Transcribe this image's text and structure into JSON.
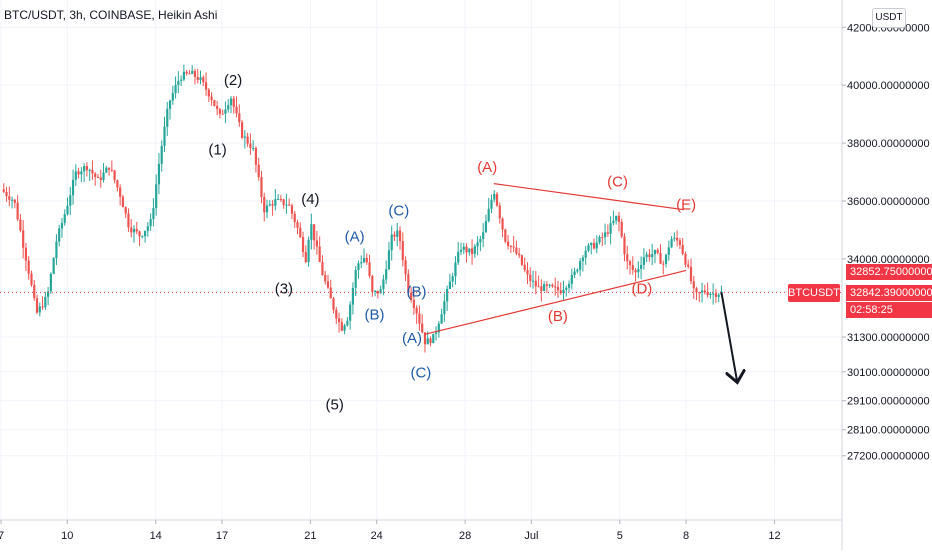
{
  "header": {
    "symbol_title": "BTC/USDT, 3h, COINBASE, Heikin Ashi",
    "currency_badge": "USDT"
  },
  "colors": {
    "up": "#26a69a",
    "down": "#ef5350",
    "wave_black": "#131722",
    "wave_blue": "#1f5ba8",
    "wave_red": "#e53935",
    "price_line": "#f23645",
    "grid": "#f0f3fa",
    "axis_text": "#131722"
  },
  "price_panel": {
    "symbol_tag": "BTCUSDT",
    "ask": "32852.75000000",
    "last": "32842.39000000",
    "countdown": "02:58:25"
  },
  "chart_data": {
    "type": "candlestick",
    "style": "Heikin Ashi",
    "interval": "3h",
    "exchange": "COINBASE",
    "y_ticks": [
      {
        "value": 42000,
        "label": "42000.00000000"
      },
      {
        "value": 40000,
        "label": "40000.00000000"
      },
      {
        "value": 38000,
        "label": "38000.00000000"
      },
      {
        "value": 36000,
        "label": "36000.00000000"
      },
      {
        "value": 34000,
        "label": "34000.00000000"
      },
      {
        "value": 31300,
        "label": "31300.00000000"
      },
      {
        "value": 30100,
        "label": "30100.00000000"
      },
      {
        "value": 29100,
        "label": "29100.00000000"
      },
      {
        "value": 28100,
        "label": "28100.00000000"
      },
      {
        "value": 27200,
        "label": "27200.00000000"
      }
    ],
    "x_ticks": [
      {
        "day": 7,
        "label": "7"
      },
      {
        "day": 10,
        "label": "10"
      },
      {
        "day": 14,
        "label": "14"
      },
      {
        "day": 17,
        "label": "17"
      },
      {
        "day": 21,
        "label": "21"
      },
      {
        "day": 24,
        "label": "24"
      },
      {
        "day": 28,
        "label": "28"
      },
      {
        "day": 31,
        "label": "Jul"
      },
      {
        "day": 35,
        "label": "5"
      },
      {
        "day": 38,
        "label": "8"
      },
      {
        "day": 42,
        "label": "12"
      }
    ],
    "anchors": [
      {
        "day": 7.0,
        "price": 36400
      },
      {
        "day": 7.6,
        "price": 36000
      },
      {
        "day": 8.3,
        "price": 33400
      },
      {
        "day": 8.6,
        "price": 32100
      },
      {
        "day": 9.1,
        "price": 32700
      },
      {
        "day": 9.5,
        "price": 34600
      },
      {
        "day": 9.9,
        "price": 35600
      },
      {
        "day": 10.4,
        "price": 37000
      },
      {
        "day": 10.9,
        "price": 37200
      },
      {
        "day": 11.4,
        "price": 36700
      },
      {
        "day": 11.9,
        "price": 37200
      },
      {
        "day": 12.4,
        "price": 36200
      },
      {
        "day": 12.8,
        "price": 35100
      },
      {
        "day": 13.3,
        "price": 34800
      },
      {
        "day": 13.8,
        "price": 35300
      },
      {
        "day": 14.2,
        "price": 37600
      },
      {
        "day": 14.6,
        "price": 39400
      },
      {
        "day": 15.1,
        "price": 40300
      },
      {
        "day": 15.6,
        "price": 40400
      },
      {
        "day": 16.0,
        "price": 40200
      },
      {
        "day": 16.5,
        "price": 39600
      },
      {
        "day": 16.9,
        "price": 38900
      },
      {
        "day": 17.4,
        "price": 39600
      },
      {
        "day": 17.9,
        "price": 38300
      },
      {
        "day": 18.4,
        "price": 37800
      },
      {
        "day": 18.9,
        "price": 35700
      },
      {
        "day": 19.4,
        "price": 36000
      },
      {
        "day": 20.0,
        "price": 35900
      },
      {
        "day": 20.4,
        "price": 35100
      },
      {
        "day": 20.8,
        "price": 34000
      },
      {
        "day": 21.0,
        "price": 35300
      },
      {
        "day": 21.5,
        "price": 33600
      },
      {
        "day": 22.0,
        "price": 32400
      },
      {
        "day": 22.4,
        "price": 31600
      },
      {
        "day": 22.7,
        "price": 32000
      },
      {
        "day": 23.1,
        "price": 33800
      },
      {
        "day": 23.5,
        "price": 34100
      },
      {
        "day": 23.8,
        "price": 32800
      },
      {
        "day": 24.2,
        "price": 32900
      },
      {
        "day": 24.7,
        "price": 34800
      },
      {
        "day": 25.0,
        "price": 34900
      },
      {
        "day": 25.4,
        "price": 33000
      },
      {
        "day": 25.8,
        "price": 32200
      },
      {
        "day": 26.2,
        "price": 31100
      },
      {
        "day": 26.6,
        "price": 31300
      },
      {
        "day": 26.9,
        "price": 32100
      },
      {
        "day": 27.4,
        "price": 33400
      },
      {
        "day": 27.8,
        "price": 34400
      },
      {
        "day": 28.3,
        "price": 34200
      },
      {
        "day": 28.8,
        "price": 34800
      },
      {
        "day": 29.3,
        "price": 36400
      },
      {
        "day": 29.8,
        "price": 34700
      },
      {
        "day": 30.4,
        "price": 34100
      },
      {
        "day": 30.8,
        "price": 33400
      },
      {
        "day": 31.3,
        "price": 33000
      },
      {
        "day": 31.8,
        "price": 33000
      },
      {
        "day": 32.3,
        "price": 32900
      },
      {
        "day": 32.9,
        "price": 33400
      },
      {
        "day": 33.4,
        "price": 34300
      },
      {
        "day": 33.9,
        "price": 34500
      },
      {
        "day": 34.4,
        "price": 34900
      },
      {
        "day": 34.9,
        "price": 35500
      },
      {
        "day": 35.3,
        "price": 33900
      },
      {
        "day": 35.7,
        "price": 33500
      },
      {
        "day": 36.1,
        "price": 34100
      },
      {
        "day": 36.6,
        "price": 34200
      },
      {
        "day": 37.0,
        "price": 33800
      },
      {
        "day": 37.3,
        "price": 34700
      },
      {
        "day": 37.7,
        "price": 34600
      },
      {
        "day": 38.1,
        "price": 33600
      },
      {
        "day": 38.4,
        "price": 32700
      },
      {
        "day": 38.8,
        "price": 32900
      },
      {
        "day": 39.2,
        "price": 32800
      },
      {
        "day": 39.6,
        "price": 32840
      }
    ],
    "lines": [
      {
        "color_key": "wave_red",
        "from": {
          "day": 29.3,
          "price": 36600
        },
        "to": {
          "day": 37.9,
          "price": 35700
        }
      },
      {
        "color_key": "wave_red",
        "from": {
          "day": 26.2,
          "price": 31400
        },
        "to": {
          "day": 38.0,
          "price": 33600
        }
      },
      {
        "color_key": "wave_black",
        "from": {
          "day": 39.6,
          "price": 32840
        },
        "to": {
          "day": 40.3,
          "price": 29800
        },
        "arrow": true
      }
    ],
    "wave_labels": [
      {
        "text": "(1)",
        "day": 16.8,
        "price": 37600,
        "color_key": "wave_black"
      },
      {
        "text": "(2)",
        "day": 17.5,
        "price": 40000,
        "color_key": "wave_black"
      },
      {
        "text": "(3)",
        "day": 19.8,
        "price": 32800,
        "color_key": "wave_black"
      },
      {
        "text": "(4)",
        "day": 21.0,
        "price": 35900,
        "color_key": "wave_black"
      },
      {
        "text": "(5)",
        "day": 22.1,
        "price": 28800,
        "color_key": "wave_black"
      },
      {
        "text": "(A)",
        "day": 23.0,
        "price": 34600,
        "color_key": "wave_blue"
      },
      {
        "text": "(B)",
        "day": 23.9,
        "price": 31900,
        "color_key": "wave_blue"
      },
      {
        "text": "(C)",
        "day": 25.0,
        "price": 35500,
        "color_key": "wave_blue"
      },
      {
        "text": "(B)",
        "day": 25.8,
        "price": 32700,
        "color_key": "wave_blue"
      },
      {
        "text": "(A)",
        "day": 25.6,
        "price": 31100,
        "color_key": "wave_blue"
      },
      {
        "text": "(C)",
        "day": 26.0,
        "price": 29900,
        "color_key": "wave_blue"
      },
      {
        "text": "(A)",
        "day": 29.0,
        "price": 37000,
        "color_key": "wave_red"
      },
      {
        "text": "(B)",
        "day": 32.2,
        "price": 31850,
        "color_key": "wave_red"
      },
      {
        "text": "(C)",
        "day": 34.9,
        "price": 36500,
        "color_key": "wave_red"
      },
      {
        "text": "(D)",
        "day": 36.0,
        "price": 32800,
        "color_key": "wave_red"
      },
      {
        "text": "(E)",
        "day": 38.0,
        "price": 35700,
        "color_key": "wave_red"
      }
    ]
  }
}
